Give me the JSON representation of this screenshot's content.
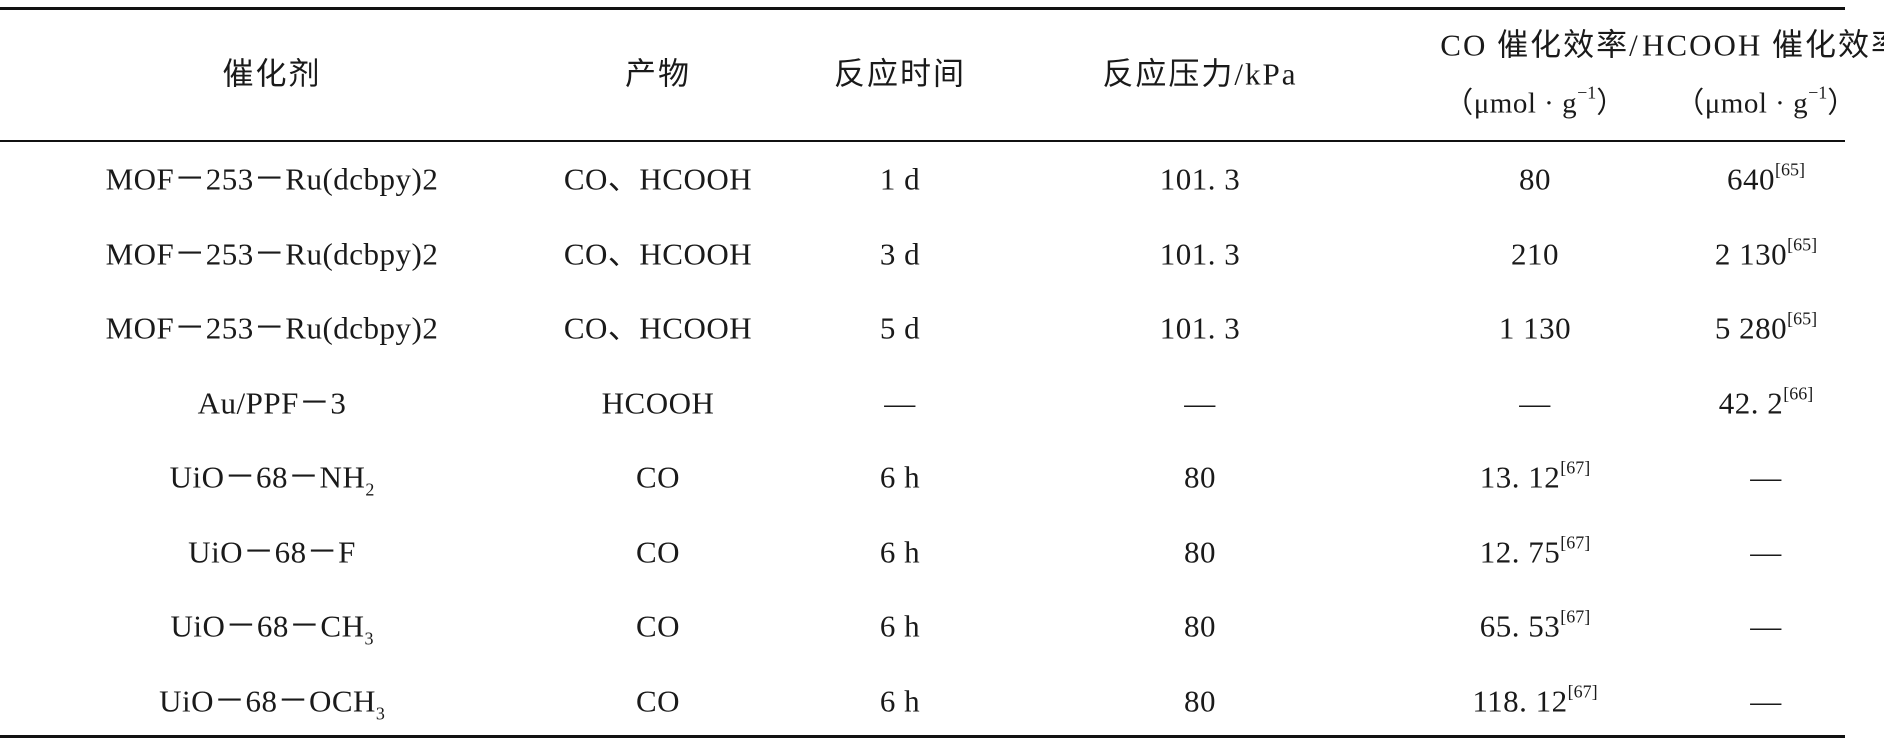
{
  "header": {
    "col1": "催化剂",
    "col2": "产物",
    "col3": "反应时间",
    "col4": "反应压力/kPa",
    "col5": "CO 催化效率/",
    "col6": "HCOOH 催化效率",
    "unit5": "（μmol · g",
    "unit5_exp": "−1",
    "unit5_close": "）",
    "unit6": "（μmol · g",
    "unit6_exp": "−1",
    "unit6_close": "）"
  },
  "rows": [
    {
      "catalyst": "MOF－253－Ru(dcbpy)2",
      "catalyst_sub": "",
      "product": "CO、HCOOH",
      "time": "1 d",
      "pressure": "101. 3",
      "co": "80",
      "co_ref": "",
      "hcooh": "640",
      "hcooh_ref": "[65]"
    },
    {
      "catalyst": "MOF－253－Ru(dcbpy)2",
      "catalyst_sub": "",
      "product": "CO、HCOOH",
      "time": "3 d",
      "pressure": "101. 3",
      "co": "210",
      "co_ref": "",
      "hcooh": "2 130",
      "hcooh_ref": "[65]"
    },
    {
      "catalyst": "MOF－253－Ru(dcbpy)2",
      "catalyst_sub": "",
      "product": "CO、HCOOH",
      "time": "5 d",
      "pressure": "101. 3",
      "co": "1 130",
      "co_ref": "",
      "hcooh": "5 280",
      "hcooh_ref": "[65]"
    },
    {
      "catalyst": "Au/PPF－3",
      "catalyst_sub": "",
      "product": "HCOOH",
      "time": "—",
      "pressure": "—",
      "co": "—",
      "co_ref": "",
      "hcooh": "42. 2",
      "hcooh_ref": "[66]"
    },
    {
      "catalyst": "UiO－68－NH",
      "catalyst_sub": "2",
      "product": "CO",
      "time": "6 h",
      "pressure": "80",
      "co": "13. 12",
      "co_ref": "[67]",
      "hcooh": "—",
      "hcooh_ref": ""
    },
    {
      "catalyst": "UiO－68－F",
      "catalyst_sub": "",
      "product": "CO",
      "time": "6 h",
      "pressure": "80",
      "co": "12. 75",
      "co_ref": "[67]",
      "hcooh": "—",
      "hcooh_ref": ""
    },
    {
      "catalyst": "UiO－68－CH",
      "catalyst_sub": "3",
      "product": "CO",
      "time": "6 h",
      "pressure": "80",
      "co": "65. 53",
      "co_ref": "[67]",
      "hcooh": "—",
      "hcooh_ref": ""
    },
    {
      "catalyst": "UiO－68－OCH",
      "catalyst_sub": "3",
      "product": "CO",
      "time": "6 h",
      "pressure": "80",
      "co": "118. 12",
      "co_ref": "[67]",
      "hcooh": "—",
      "hcooh_ref": ""
    }
  ]
}
